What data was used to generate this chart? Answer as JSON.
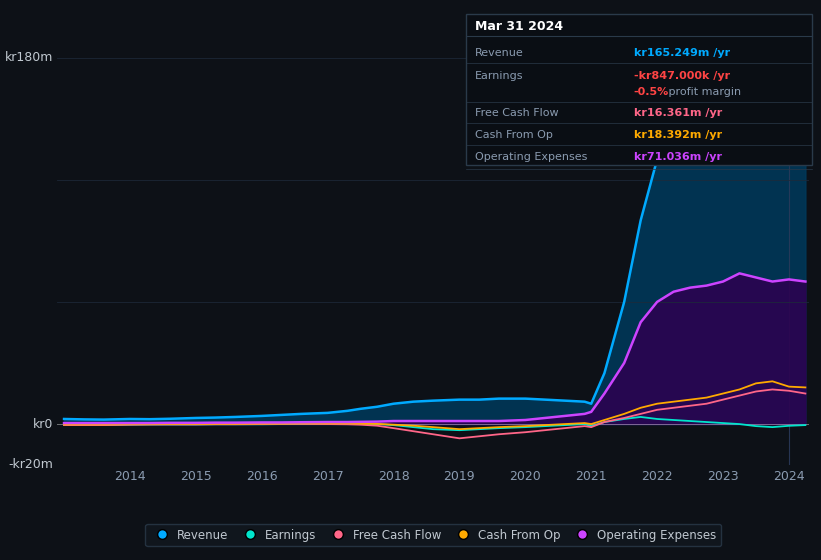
{
  "background_color": "#0d1117",
  "plot_bg_color": "#0d1117",
  "grid_color": "#1e2a3a",
  "text_color": "#c0c8d0",
  "ylim": [
    -20,
    200
  ],
  "xlabel_color": "#8a9bb0",
  "years": [
    2013.0,
    2013.3,
    2013.6,
    2014.0,
    2014.3,
    2014.6,
    2015.0,
    2015.3,
    2015.6,
    2016.0,
    2016.3,
    2016.6,
    2017.0,
    2017.3,
    2017.5,
    2017.75,
    2018.0,
    2018.3,
    2018.6,
    2019.0,
    2019.3,
    2019.6,
    2020.0,
    2020.3,
    2020.6,
    2020.9,
    2021.0,
    2021.2,
    2021.5,
    2021.75,
    2022.0,
    2022.25,
    2022.5,
    2022.75,
    2023.0,
    2023.25,
    2023.5,
    2023.75,
    2024.0,
    2024.25
  ],
  "revenue": [
    2.5,
    2.3,
    2.2,
    2.5,
    2.4,
    2.6,
    3.0,
    3.2,
    3.5,
    4.0,
    4.5,
    5.0,
    5.5,
    6.5,
    7.5,
    8.5,
    10.0,
    11.0,
    11.5,
    12.0,
    12.0,
    12.5,
    12.5,
    12.0,
    11.5,
    11.0,
    10.0,
    25.0,
    60.0,
    100.0,
    130.0,
    155.0,
    160.0,
    160.0,
    165.0,
    175.0,
    165.0,
    155.0,
    165.249,
    165.0
  ],
  "earnings": [
    -0.5,
    -0.5,
    -0.5,
    -0.3,
    -0.2,
    -0.2,
    -0.2,
    -0.1,
    -0.1,
    -0.1,
    0.0,
    0.1,
    0.1,
    0.2,
    0.1,
    0.0,
    -0.5,
    -1.5,
    -2.5,
    -3.0,
    -2.5,
    -2.0,
    -1.5,
    -1.0,
    -0.5,
    0.0,
    -1.0,
    1.0,
    2.5,
    3.5,
    2.5,
    2.0,
    1.5,
    1.0,
    0.5,
    0.0,
    -1.0,
    -1.5,
    -0.847,
    -0.5
  ],
  "free_cash_flow": [
    -0.5,
    -0.5,
    -0.5,
    -0.3,
    -0.2,
    -0.2,
    -0.2,
    -0.1,
    -0.1,
    0.0,
    0.1,
    0.1,
    0.0,
    -0.1,
    -0.3,
    -0.8,
    -2.0,
    -3.5,
    -5.0,
    -7.0,
    -6.0,
    -5.0,
    -4.0,
    -3.0,
    -2.0,
    -1.0,
    -1.5,
    1.0,
    3.0,
    5.0,
    7.0,
    8.0,
    9.0,
    10.0,
    12.0,
    14.0,
    16.0,
    17.0,
    16.361,
    15.0
  ],
  "cash_from_op": [
    -0.2,
    -0.2,
    -0.2,
    -0.1,
    -0.1,
    0.0,
    0.0,
    0.1,
    0.1,
    0.2,
    0.2,
    0.3,
    0.3,
    0.3,
    0.2,
    0.1,
    -0.3,
    -0.8,
    -1.5,
    -2.5,
    -2.0,
    -1.5,
    -1.0,
    -0.5,
    0.0,
    0.5,
    0.0,
    2.0,
    5.0,
    8.0,
    10.0,
    11.0,
    12.0,
    13.0,
    15.0,
    17.0,
    20.0,
    21.0,
    18.392,
    18.0
  ],
  "operating_expenses": [
    0.5,
    0.5,
    0.5,
    0.5,
    0.5,
    0.6,
    0.6,
    0.7,
    0.7,
    0.8,
    0.8,
    0.9,
    1.0,
    1.0,
    1.1,
    1.2,
    1.5,
    1.5,
    1.5,
    1.5,
    1.5,
    1.5,
    2.0,
    3.0,
    4.0,
    5.0,
    6.0,
    15.0,
    30.0,
    50.0,
    60.0,
    65.0,
    67.0,
    68.0,
    70.0,
    74.0,
    72.0,
    70.0,
    71.036,
    70.0
  ],
  "revenue_color": "#00aaff",
  "earnings_color": "#00e5cc",
  "free_cash_flow_color": "#ff6688",
  "cash_from_op_color": "#ffaa00",
  "operating_expenses_color": "#cc44ff",
  "revenue_fill_color": "#003a5c",
  "operating_expenses_fill_color": "#2d0050",
  "tooltip_bg": "#0a0e14",
  "tooltip_border": "#2a3a4a",
  "tooltip_title": "Mar 31 2024",
  "tooltip_revenue_label": "Revenue",
  "tooltip_revenue_value": "kr165.249m",
  "tooltip_revenue_color": "#00aaff",
  "tooltip_earnings_label": "Earnings",
  "tooltip_earnings_value": "-kr847.000k",
  "tooltip_earnings_color": "#ff4444",
  "tooltip_margin_value": "-0.5%",
  "tooltip_margin_text": " profit margin",
  "tooltip_margin_color": "#ff4444",
  "tooltip_fcf_label": "Free Cash Flow",
  "tooltip_fcf_value": "kr16.361m",
  "tooltip_fcf_color": "#ff6688",
  "tooltip_cashop_label": "Cash From Op",
  "tooltip_cashop_value": "kr18.392m",
  "tooltip_cashop_color": "#ffaa00",
  "tooltip_opex_label": "Operating Expenses",
  "tooltip_opex_value": "kr71.036m",
  "tooltip_opex_color": "#cc44ff",
  "legend_labels": [
    "Revenue",
    "Earnings",
    "Free Cash Flow",
    "Cash From Op",
    "Operating Expenses"
  ],
  "legend_colors": [
    "#00aaff",
    "#00e5cc",
    "#ff6688",
    "#ffaa00",
    "#cc44ff"
  ],
  "xtick_years": [
    2014,
    2015,
    2016,
    2017,
    2018,
    2019,
    2020,
    2021,
    2022,
    2023,
    2024
  ]
}
